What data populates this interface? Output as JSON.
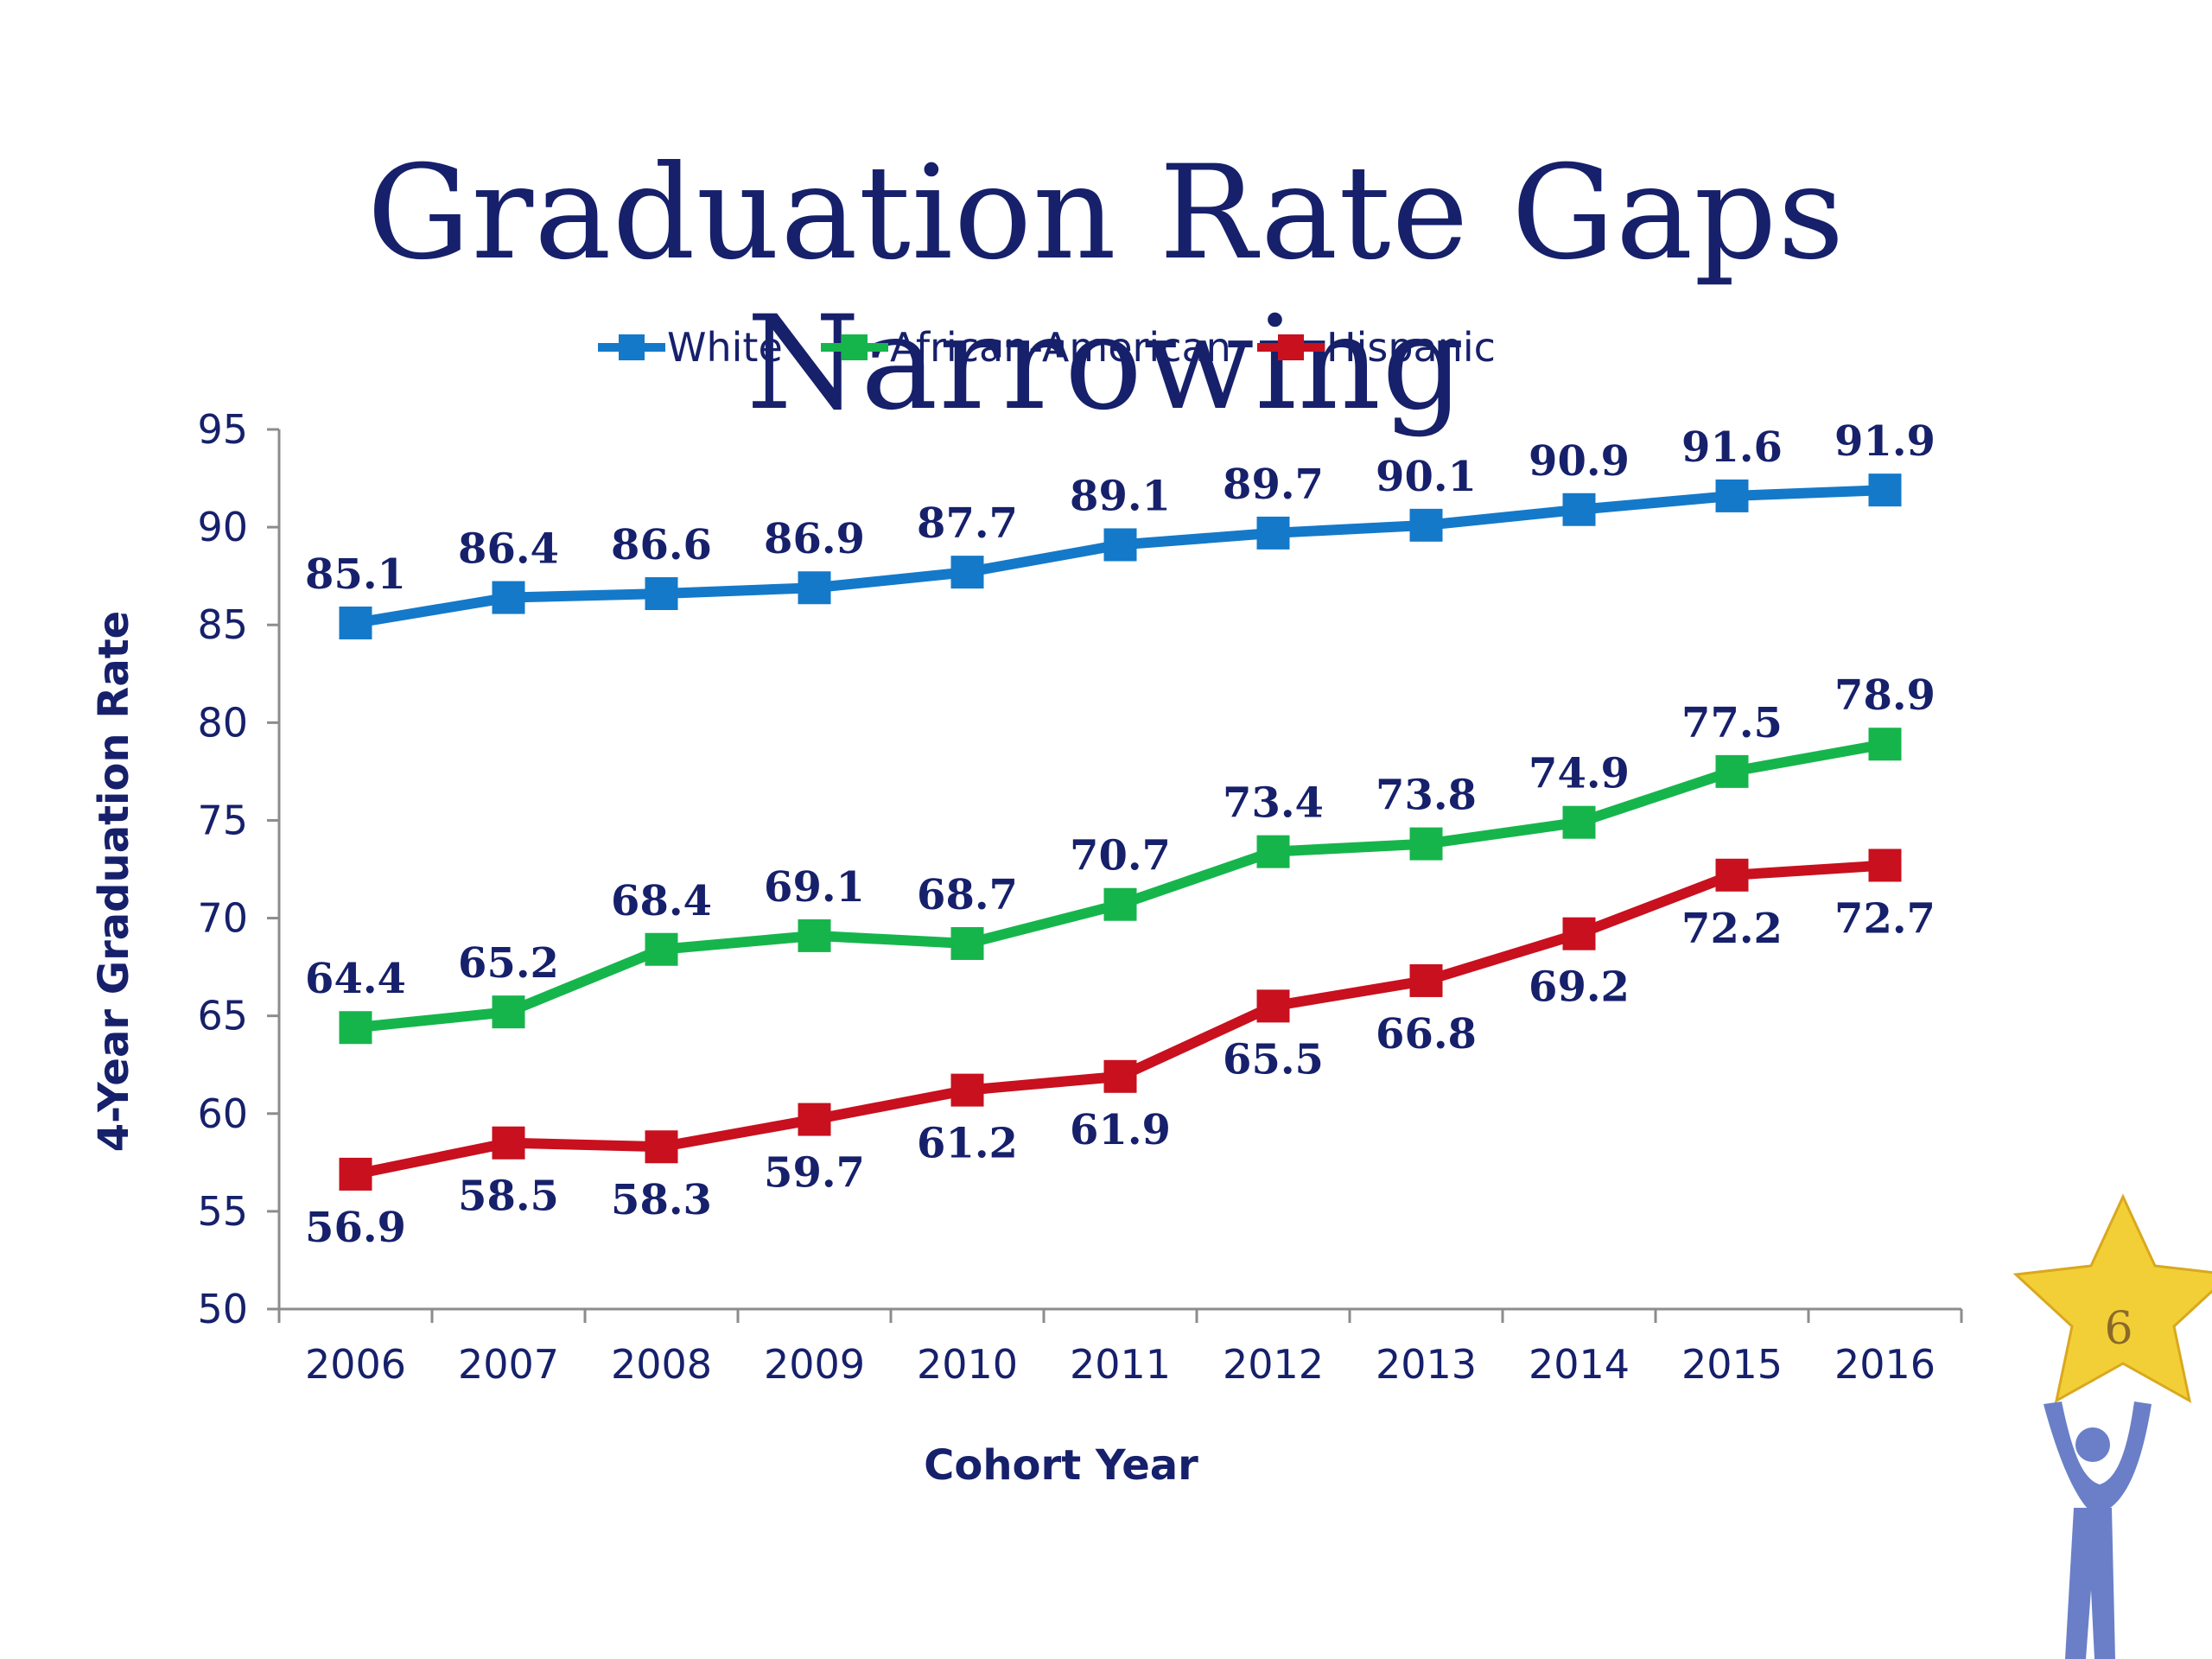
{
  "slide": {
    "title": "Graduation Rate Gaps Narrowing",
    "page_number": "6"
  },
  "colors": {
    "title": "#16206b",
    "white_series": "#1479c9",
    "african_american_series": "#16b54c",
    "hispanic_series": "#c8101e",
    "axis": "#8c8c8c",
    "text": "#16206b",
    "star_fill": "#f3cf37",
    "figure_fill": "#6a7fc8"
  },
  "icons": {
    "logo": "star-with-figure-icon"
  },
  "chart_data": {
    "type": "line",
    "title": "",
    "xlabel": "Cohort Year",
    "ylabel": "4-Year Graduation Rate",
    "ylim": [
      50,
      95
    ],
    "yticks": [
      50,
      55,
      60,
      65,
      70,
      75,
      80,
      85,
      90,
      95
    ],
    "grid": false,
    "legend_position": "top",
    "data_labels": true,
    "x": [
      "2006",
      "2007",
      "2008",
      "2009",
      "2010",
      "2011",
      "2012",
      "2013",
      "2014",
      "2015",
      "2016"
    ],
    "series": [
      {
        "name": "White",
        "color": "#1479c9",
        "label_position": "above",
        "values": [
          85.1,
          86.4,
          86.6,
          86.9,
          87.7,
          89.1,
          89.7,
          90.1,
          90.9,
          91.6,
          91.9
        ]
      },
      {
        "name": "African-American",
        "color": "#16b54c",
        "label_position": "above",
        "values": [
          64.4,
          65.2,
          68.4,
          69.1,
          68.7,
          70.7,
          73.4,
          73.8,
          74.9,
          77.5,
          78.9
        ]
      },
      {
        "name": "Hispanic",
        "color": "#c8101e",
        "label_position": "below",
        "values": [
          56.9,
          58.5,
          58.3,
          59.7,
          61.2,
          61.9,
          65.5,
          66.8,
          69.2,
          72.2,
          72.7
        ]
      }
    ]
  }
}
